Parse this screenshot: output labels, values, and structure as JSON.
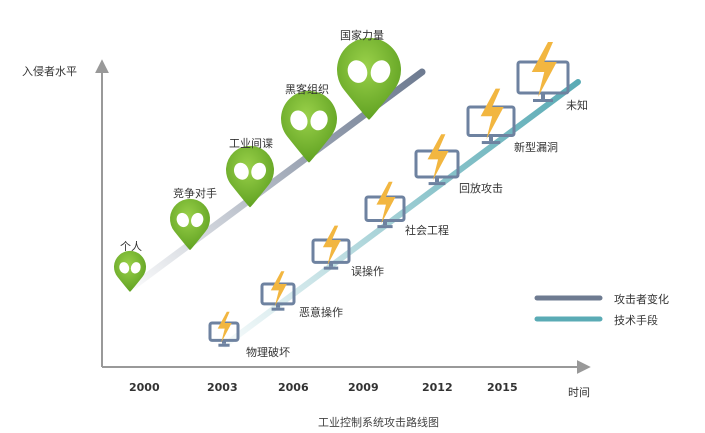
{
  "y_axis_title": "入侵者水平",
  "x_axis_title": "时间",
  "caption": "工业控制系统攻击路线图",
  "years": [
    "2000",
    "2003",
    "2006",
    "2009",
    "2012",
    "2015"
  ],
  "attackers": [
    {
      "label": "个人"
    },
    {
      "label": "竞争对手"
    },
    {
      "label": "工业间谍"
    },
    {
      "label": "黑客组织"
    },
    {
      "label": "国家力量"
    }
  ],
  "techniques": [
    {
      "label": "物理破坏"
    },
    {
      "label": "恶意操作"
    },
    {
      "label": "误操作"
    },
    {
      "label": "社会工程"
    },
    {
      "label": "回放攻击"
    },
    {
      "label": "新型漏洞"
    },
    {
      "label": "未知"
    }
  ],
  "legend": {
    "attacker": {
      "label": "攻击者变化",
      "color": "#6e7b91"
    },
    "technique": {
      "label": "技术手段",
      "color": "#5aabb5"
    }
  },
  "colors": {
    "attacker_pin": "#76bb33",
    "monitor": "#6e82a0",
    "bolt": "#f2b640",
    "axis": "#999999"
  }
}
